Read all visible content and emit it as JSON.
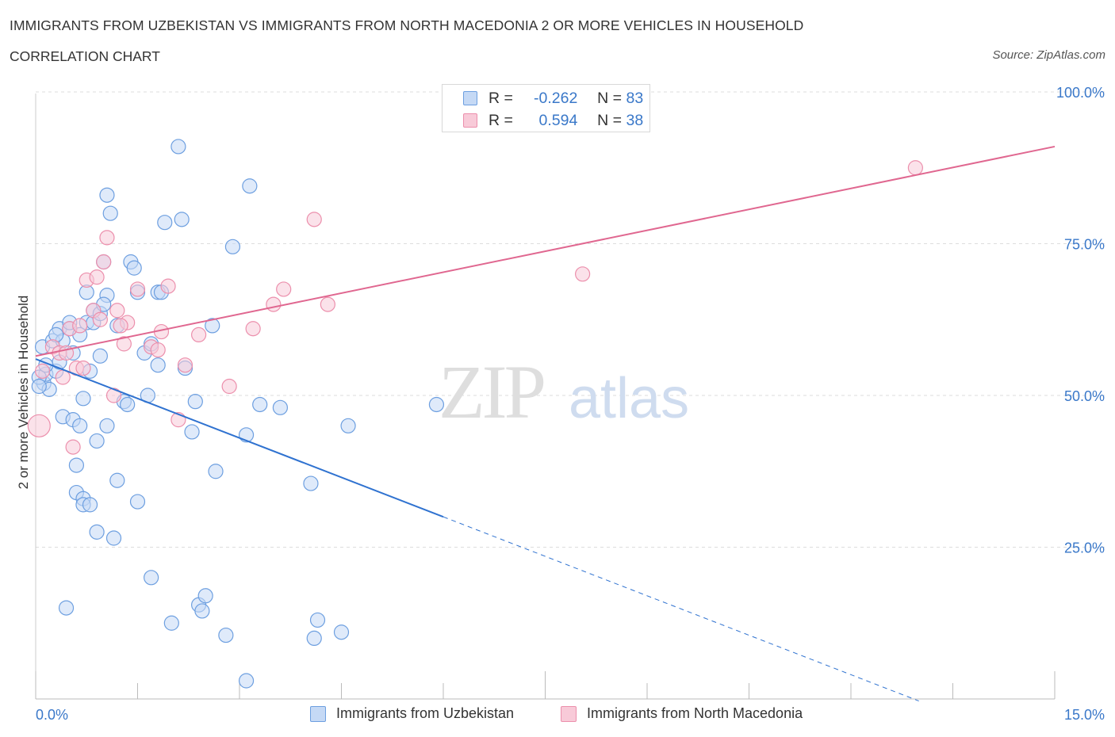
{
  "title": "IMMIGRANTS FROM UZBEKISTAN VS IMMIGRANTS FROM NORTH MACEDONIA 2 OR MORE VEHICLES IN HOUSEHOLD",
  "subtitle": "CORRELATION CHART",
  "source": "Source: ZipAtlas.com",
  "watermark": {
    "zip": "ZIP",
    "atlas": "atlas"
  },
  "legend_stats": [
    {
      "r_label": "R =",
      "r_value": "-0.262",
      "n_label": "N =",
      "n_value": "83"
    },
    {
      "r_label": "R =",
      "r_value": "0.594",
      "n_label": "N =",
      "n_value": "38"
    }
  ],
  "colors": {
    "blue_fill": "#c5d9f5",
    "blue_stroke": "#6d9fe0",
    "blue_line": "#2f72d0",
    "pink_fill": "#f8cad8",
    "pink_stroke": "#ec8fac",
    "pink_line": "#e06790",
    "tick_text": "#3a78c9",
    "grid": "#dddddd"
  },
  "chart_data": {
    "type": "scatter",
    "xlabel": "",
    "ylabel": "2 or more Vehicles in Household",
    "xlim": [
      0,
      15
    ],
    "ylim": [
      0,
      100
    ],
    "x_tick_labels": [
      "0.0%",
      "15.0%"
    ],
    "y_ticks": [
      25,
      50,
      75,
      100
    ],
    "y_tick_labels": [
      "25.0%",
      "50.0%",
      "75.0%",
      "100.0%"
    ],
    "grid": "horizontal-dashed",
    "legend": "bottom-center",
    "series": [
      {
        "name": "Immigrants from Uzbekistan",
        "color": "#6d9fe0",
        "points": [
          [
            0.1,
            58.0
          ],
          [
            0.12,
            52.0
          ],
          [
            0.15,
            53.5
          ],
          [
            0.2,
            51.0
          ],
          [
            0.25,
            59.0
          ],
          [
            0.3,
            54.0
          ],
          [
            0.35,
            55.5
          ],
          [
            0.35,
            61.0
          ],
          [
            0.4,
            59.0
          ],
          [
            0.4,
            46.5
          ],
          [
            0.45,
            15.0
          ],
          [
            0.5,
            61.0
          ],
          [
            0.55,
            57.0
          ],
          [
            0.55,
            46.0
          ],
          [
            0.6,
            34.0
          ],
          [
            0.6,
            38.5
          ],
          [
            0.65,
            45.0
          ],
          [
            0.65,
            60.0
          ],
          [
            0.7,
            33.0
          ],
          [
            0.7,
            32.0
          ],
          [
            0.7,
            49.5
          ],
          [
            0.75,
            62.0
          ],
          [
            0.75,
            67.0
          ],
          [
            0.8,
            32.0
          ],
          [
            0.8,
            54.0
          ],
          [
            0.85,
            64.0
          ],
          [
            0.85,
            62.0
          ],
          [
            0.9,
            42.5
          ],
          [
            0.9,
            27.5
          ],
          [
            0.95,
            56.5
          ],
          [
            0.95,
            63.5
          ],
          [
            1.0,
            72.0
          ],
          [
            1.05,
            45.0
          ],
          [
            1.05,
            66.5
          ],
          [
            1.05,
            83.0
          ],
          [
            1.1,
            80.0
          ],
          [
            1.15,
            26.5
          ],
          [
            1.2,
            36.0
          ],
          [
            1.2,
            61.5
          ],
          [
            1.3,
            49.0
          ],
          [
            1.35,
            48.5
          ],
          [
            1.4,
            72.0
          ],
          [
            1.45,
            71.0
          ],
          [
            1.5,
            67.0
          ],
          [
            1.5,
            32.5
          ],
          [
            1.6,
            57.0
          ],
          [
            1.65,
            50.0
          ],
          [
            1.7,
            58.5
          ],
          [
            1.7,
            20.0
          ],
          [
            1.8,
            55.0
          ],
          [
            1.8,
            67.0
          ],
          [
            1.85,
            67.0
          ],
          [
            1.9,
            78.5
          ],
          [
            2.0,
            12.5
          ],
          [
            2.1,
            91.0
          ],
          [
            2.15,
            79.0
          ],
          [
            2.2,
            54.5
          ],
          [
            2.3,
            44.0
          ],
          [
            2.35,
            49.0
          ],
          [
            2.4,
            15.5
          ],
          [
            2.45,
            14.5
          ],
          [
            2.5,
            17.0
          ],
          [
            2.6,
            61.5
          ],
          [
            2.65,
            37.5
          ],
          [
            2.8,
            10.5
          ],
          [
            2.9,
            74.5
          ],
          [
            3.1,
            43.5
          ],
          [
            3.1,
            3.0
          ],
          [
            3.15,
            84.5
          ],
          [
            3.3,
            48.5
          ],
          [
            3.6,
            48.0
          ],
          [
            4.05,
            35.5
          ],
          [
            4.1,
            10.0
          ],
          [
            4.15,
            13.0
          ],
          [
            4.5,
            11.0
          ],
          [
            4.6,
            45.0
          ],
          [
            5.9,
            48.5
          ],
          [
            0.05,
            53.0
          ],
          [
            0.05,
            51.5
          ],
          [
            0.15,
            55.0
          ],
          [
            0.3,
            60.0
          ],
          [
            0.5,
            62.0
          ],
          [
            1.0,
            65.0
          ]
        ],
        "trend": {
          "x": [
            0.0,
            6.0
          ],
          "y": [
            56.0,
            30.0
          ],
          "dashed_extension_x": [
            6.0,
            13.0
          ]
        }
      },
      {
        "name": "Immigrants from North Macedonia",
        "color": "#ec8fac",
        "points": [
          [
            0.05,
            45.0
          ],
          [
            0.1,
            54.0
          ],
          [
            0.25,
            58.0
          ],
          [
            0.35,
            57.0
          ],
          [
            0.4,
            53.0
          ],
          [
            0.5,
            61.0
          ],
          [
            0.55,
            41.5
          ],
          [
            0.6,
            54.5
          ],
          [
            0.65,
            61.5
          ],
          [
            0.7,
            54.5
          ],
          [
            0.75,
            69.0
          ],
          [
            0.85,
            64.0
          ],
          [
            0.9,
            69.5
          ],
          [
            1.0,
            72.0
          ],
          [
            1.05,
            76.0
          ],
          [
            1.15,
            50.0
          ],
          [
            1.2,
            64.0
          ],
          [
            1.3,
            58.5
          ],
          [
            1.35,
            62.0
          ],
          [
            1.5,
            67.5
          ],
          [
            1.7,
            58.0
          ],
          [
            1.8,
            57.5
          ],
          [
            1.85,
            60.5
          ],
          [
            1.95,
            68.0
          ],
          [
            2.1,
            46.0
          ],
          [
            2.2,
            55.0
          ],
          [
            2.4,
            60.0
          ],
          [
            2.85,
            51.5
          ],
          [
            3.2,
            61.0
          ],
          [
            3.5,
            65.0
          ],
          [
            3.65,
            67.5
          ],
          [
            4.1,
            79.0
          ],
          [
            4.3,
            65.0
          ],
          [
            8.05,
            70.0
          ],
          [
            12.95,
            87.5
          ],
          [
            1.25,
            61.5
          ],
          [
            0.95,
            62.5
          ],
          [
            0.45,
            57.0
          ]
        ],
        "trend": {
          "x": [
            0.0,
            15.0
          ],
          "y": [
            56.5,
            91.0
          ]
        }
      }
    ]
  }
}
